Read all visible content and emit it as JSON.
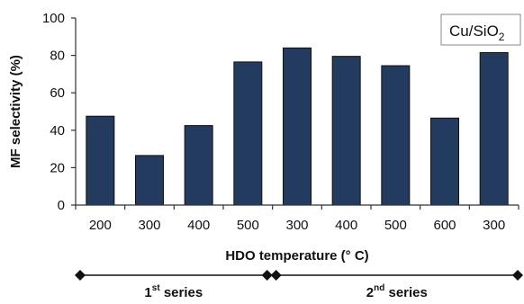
{
  "chart_data": {
    "type": "bar",
    "categories": [
      "200",
      "300",
      "400",
      "500",
      "300",
      "400",
      "500",
      "600",
      "300"
    ],
    "values": [
      47.5,
      26.5,
      42.5,
      76.5,
      84,
      79.5,
      74.5,
      46.5,
      81.5
    ],
    "xlabel": "HDO temperature (° C)",
    "ylabel": "MF selectivity (%)",
    "ylim": [
      0,
      100
    ],
    "yticks": [
      0,
      20,
      40,
      60,
      80,
      100
    ],
    "bar_color": "#243b60",
    "legend": {
      "text_main": "Cu/SiO",
      "text_sub": "2",
      "placement": "top-right"
    },
    "groups": [
      {
        "label_main": "1",
        "label_sup": "st",
        "label_rest": " series",
        "start_index": 0,
        "end_index": 3
      },
      {
        "label_main": "2",
        "label_sup": "nd",
        "label_rest": " series",
        "start_index": 4,
        "end_index": 8
      }
    ]
  }
}
